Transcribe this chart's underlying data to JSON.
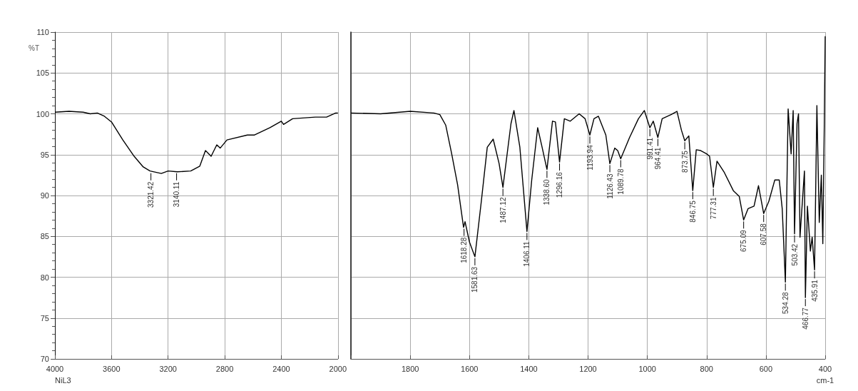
{
  "chart_data": [
    {
      "type": "line",
      "ylabel": "%T",
      "xlim": [
        4000,
        2000
      ],
      "xticks": [
        4000,
        3600,
        3200,
        2800,
        2400,
        2000
      ],
      "ylim": [
        70,
        110
      ],
      "yticks": [
        70,
        75,
        80,
        85,
        90,
        95,
        100,
        105,
        110
      ],
      "grid": true,
      "series": [
        {
          "color": "#000000",
          "x": [
            4000,
            3900,
            3800,
            3750,
            3700,
            3650,
            3600,
            3520,
            3440,
            3376,
            3328,
            3248,
            3200,
            3136,
            3040,
            2976,
            2936,
            2896,
            2856,
            2832,
            2784,
            2640,
            2592,
            2480,
            2400,
            2384,
            2320,
            2160,
            2080,
            2016,
            2000
          ],
          "values": [
            100.2,
            100.3,
            100.2,
            100.0,
            100.1,
            99.7,
            99.0,
            96.8,
            94.8,
            93.5,
            93.0,
            92.7,
            93.0,
            92.9,
            93.0,
            93.6,
            95.5,
            94.8,
            96.2,
            95.8,
            96.8,
            97.4,
            97.4,
            98.3,
            99.1,
            98.7,
            99.4,
            99.6,
            99.6,
            100.1,
            100.1
          ]
        }
      ],
      "annotations": [
        {
          "text": "3321.42",
          "x": 3321.42,
          "y": 92.9
        },
        {
          "text": "3140.11",
          "x": 3140.11,
          "y": 92.9
        },
        "NiL3"
      ]
    },
    {
      "type": "line",
      "xlabel": "cm-1",
      "xlim": [
        2000,
        400
      ],
      "xticks": [
        {
          "value": 2000,
          "label": null
        },
        1800,
        1600,
        1400,
        1200,
        1000,
        800,
        600,
        400
      ],
      "ylim": [
        70,
        110
      ],
      "yticks": [
        70,
        75,
        80,
        85,
        90,
        95,
        100,
        105,
        110
      ],
      "grid": true,
      "tick_labels": "x",
      "series": [
        {
          "color": "#000000",
          "x": [
            2000,
            1900,
            1800,
            1720,
            1700,
            1680,
            1660,
            1640,
            1620,
            1615,
            1600,
            1581.63,
            1560,
            1540,
            1520,
            1500,
            1487.12,
            1460,
            1450,
            1430,
            1406.11,
            1390,
            1370,
            1355,
            1338.6,
            1320,
            1310,
            1296.16,
            1280,
            1260,
            1230,
            1210,
            1193.94,
            1180,
            1165,
            1140,
            1126.43,
            1110,
            1100,
            1089.78,
            1060,
            1030,
            1010,
            991.41,
            980,
            964.41,
            950,
            920,
            900,
            885,
            873.75,
            860,
            846.75,
            835,
            820,
            800,
            790,
            777.31,
            765,
            740,
            710,
            690,
            675.09,
            660,
            640,
            625,
            607.58,
            590,
            570,
            555,
            545,
            534.28,
            525,
            515,
            508,
            503.42,
            495,
            490,
            485,
            478,
            470,
            466.77,
            460,
            450,
            444,
            435.91,
            428,
            420,
            413,
            408,
            403,
            400
          ],
          "values": [
            100.1,
            100.0,
            100.3,
            100.1,
            99.9,
            98.6,
            95.1,
            91.3,
            86.1,
            86.8,
            84.3,
            82.5,
            89.3,
            95.9,
            96.9,
            93.9,
            91.0,
            98.8,
            100.4,
            95.9,
            85.6,
            91.9,
            98.3,
            95.9,
            93.2,
            99.1,
            99.0,
            94.1,
            99.4,
            99.1,
            100.0,
            99.4,
            97.4,
            99.4,
            99.7,
            97.4,
            93.9,
            95.8,
            95.5,
            94.5,
            97.1,
            99.4,
            100.4,
            98.3,
            99.1,
            97.1,
            99.4,
            99.9,
            100.3,
            98.0,
            96.7,
            97.3,
            90.6,
            95.6,
            95.5,
            95.1,
            94.8,
            91.0,
            94.2,
            92.8,
            90.6,
            89.9,
            87.0,
            88.4,
            88.7,
            91.2,
            87.8,
            89.3,
            91.9,
            91.9,
            88.4,
            79.4,
            100.6,
            95.1,
            100.4,
            85.3,
            98.8,
            100.0,
            84.9,
            88.7,
            93.0,
            77.5,
            88.7,
            83.2,
            84.9,
            80.9,
            101.0,
            86.7,
            92.5,
            84.1,
            98.8,
            109.5
          ]
        }
      ],
      "annotations": [
        {
          "text": "1618.28",
          "x": 1618.28,
          "y": 86.1
        },
        {
          "text": "1581.63",
          "x": 1581.63,
          "y": 82.5
        },
        {
          "text": "1487.12",
          "x": 1487.12,
          "y": 91.0
        },
        {
          "text": "1406.11",
          "x": 1406.11,
          "y": 85.6
        },
        {
          "text": "1338.60",
          "x": 1338.6,
          "y": 93.2
        },
        {
          "text": "1296.16",
          "x": 1296.16,
          "y": 94.1
        },
        {
          "text": "1193.94",
          "x": 1193.94,
          "y": 97.4
        },
        {
          "text": "1126.43",
          "x": 1126.43,
          "y": 93.9
        },
        {
          "text": "1089.78",
          "x": 1089.78,
          "y": 94.5
        },
        {
          "text": "991.41",
          "x": 991.41,
          "y": 98.3
        },
        {
          "text": "964.41",
          "x": 964.41,
          "y": 97.1
        },
        {
          "text": "873.75",
          "x": 873.75,
          "y": 96.7
        },
        {
          "text": "846.75",
          "x": 846.75,
          "y": 90.6
        },
        {
          "text": "777.31",
          "x": 777.31,
          "y": 91.0
        },
        {
          "text": "675.09",
          "x": 675.09,
          "y": 87.0
        },
        {
          "text": "607.58",
          "x": 607.58,
          "y": 87.8
        },
        {
          "text": "534.28",
          "x": 534.28,
          "y": 79.4
        },
        {
          "text": "503.42",
          "x": 503.42,
          "y": 85.3
        },
        {
          "text": "466.77",
          "x": 466.77,
          "y": 77.5
        },
        {
          "text": "435.91",
          "x": 435.91,
          "y": 80.9
        }
      ]
    }
  ]
}
